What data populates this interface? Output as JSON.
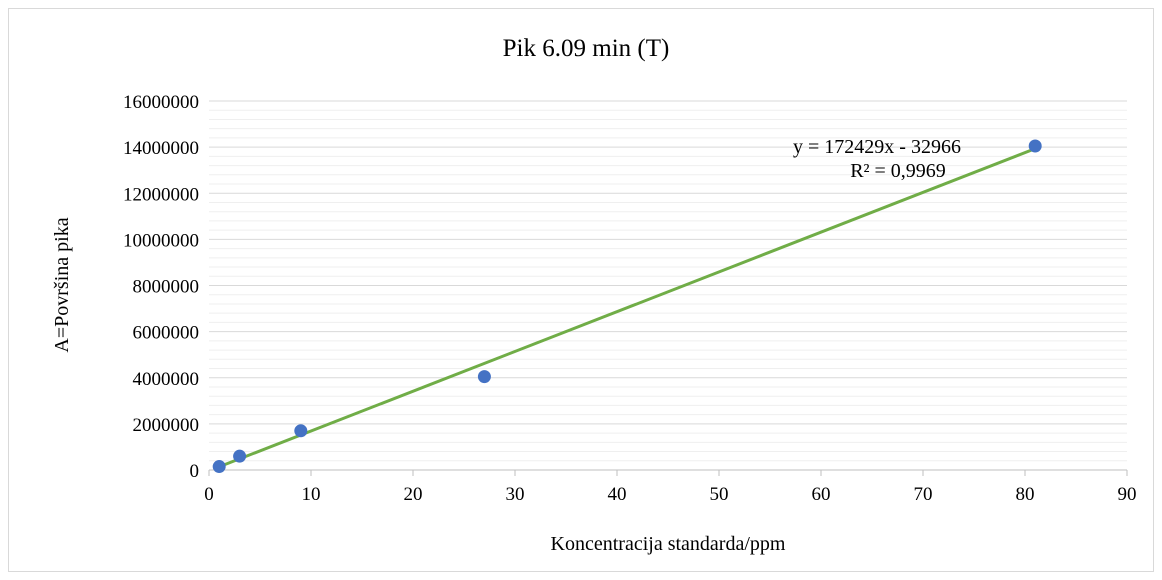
{
  "chart_data": {
    "type": "scatter",
    "title": "Pik 6.09 min (T)",
    "xlabel": "Koncentracija standarda/ppm",
    "ylabel": "A=Površina pika",
    "xlim": [
      0,
      90
    ],
    "ylim": [
      0,
      16000000
    ],
    "x_ticks": [
      "0",
      "10",
      "20",
      "30",
      "40",
      "50",
      "60",
      "70",
      "80",
      "90"
    ],
    "y_ticks": [
      "0",
      "2000000",
      "4000000",
      "6000000",
      "8000000",
      "10000000",
      "12000000",
      "14000000",
      "16000000"
    ],
    "points": [
      {
        "x": 1,
        "y": 150000
      },
      {
        "x": 3,
        "y": 600000
      },
      {
        "x": 9,
        "y": 1700000
      },
      {
        "x": 27,
        "y": 4050000
      },
      {
        "x": 81,
        "y": 14050000
      }
    ],
    "trendline": {
      "slope": 172429,
      "intercept": -32966,
      "x_range": [
        1,
        81
      ],
      "equation": "y = 172429x - 32966",
      "r_squared": "R² = 0,9969"
    },
    "colors": {
      "marker": "#4472C4",
      "trendline": "#70AD47",
      "major_grid": "#d9d9d9",
      "minor_grid": "#efefef",
      "axis": "#bfbfbf"
    },
    "grid": true,
    "legend": "none"
  }
}
